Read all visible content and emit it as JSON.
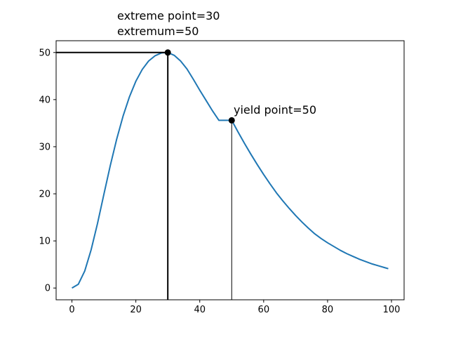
{
  "chart_data": {
    "type": "line",
    "title": "",
    "xlabel": "",
    "ylabel": "",
    "xlim": [
      -4.95,
      103.95
    ],
    "ylim": [
      -2.5,
      52.5
    ],
    "xticks": [
      0,
      20,
      40,
      60,
      80,
      100
    ],
    "yticks": [
      0,
      10,
      20,
      30,
      40,
      50
    ],
    "grid": false,
    "series": [
      {
        "color": "#1f77b4",
        "x": [
          0,
          2,
          4,
          6,
          8,
          10,
          12,
          14,
          16,
          18,
          20,
          22,
          24,
          26,
          28,
          30,
          32,
          34,
          36,
          38,
          40,
          42,
          44,
          46,
          48,
          50,
          52,
          54,
          56,
          58,
          60,
          62,
          64,
          66,
          68,
          70,
          72,
          74,
          76,
          78,
          80,
          82,
          84,
          86,
          88,
          90,
          92,
          94,
          96,
          98,
          99
        ],
        "y": [
          0,
          0.8,
          3.6,
          8.1,
          13.7,
          19.9,
          26.0,
          31.6,
          36.5,
          40.6,
          43.9,
          46.4,
          48.2,
          49.3,
          49.9,
          50.0,
          49.4,
          48.2,
          46.5,
          44.3,
          42.0,
          39.8,
          37.6,
          35.6,
          35.6,
          35.6,
          33.1,
          30.7,
          28.4,
          26.2,
          24.1,
          22.1,
          20.2,
          18.5,
          16.9,
          15.4,
          14.0,
          12.7,
          11.5,
          10.5,
          9.6,
          8.8,
          8.0,
          7.3,
          6.7,
          6.1,
          5.6,
          5.1,
          4.7,
          4.3,
          4.1
        ]
      }
    ],
    "extreme_point": {
      "x": 30,
      "y": 50,
      "label_line1": "extreme point=30",
      "label_line2": "extremum=50"
    },
    "yield_point": {
      "x": 50,
      "y": 35.6,
      "label": "yield point=50"
    }
  }
}
